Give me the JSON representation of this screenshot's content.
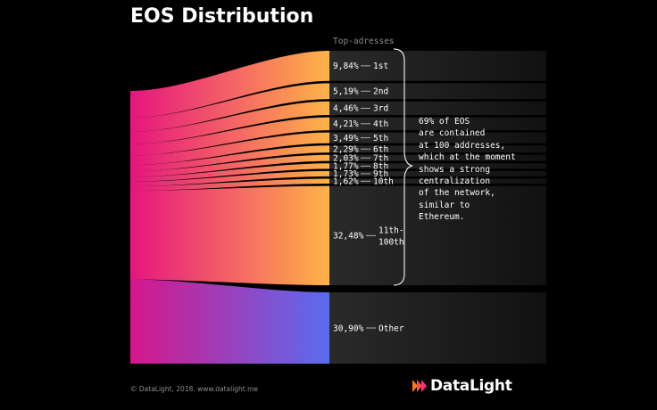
{
  "chart_data": {
    "type": "sankey",
    "title": "EOS Distribution",
    "subtitle": "Top-adresses",
    "source": {
      "color_top": "#e8177f",
      "color_bottom": "#e8177f"
    },
    "categories": [
      "1st",
      "2nd",
      "3rd",
      "4th",
      "5th",
      "6th",
      "7th",
      "8th",
      "9th",
      "10th",
      "11th-100th",
      "Other"
    ],
    "value_labels": [
      "9,84%",
      "5,19%",
      "4,46%",
      "4,21%",
      "3,49%",
      "2,29%",
      "2,03%",
      "1,77%",
      "1,73%",
      "1,62%",
      "32,48%",
      "30,90%"
    ],
    "values": [
      9.84,
      5.19,
      4.46,
      4.21,
      3.49,
      2.29,
      2.03,
      1.77,
      1.73,
      1.62,
      32.48,
      30.9
    ],
    "colors": {
      "warm_start": "#e5157f",
      "warm_end": "#ffb347",
      "cool_start": "#d6168a",
      "cool_end": "#5b6cf0"
    },
    "annotation": "69% of EOS\nare contained\nat 100 addresses,\nwhich at the moment\nshows a strong\ncentralization\nof the network,\nsimilar to\nEthereum."
  },
  "footer": "© DataLight, 2018. www.datalight.me",
  "logo": {
    "text": "DataLight",
    "icon": "datalight-logo-icon",
    "accent": "#ff7a1a"
  }
}
